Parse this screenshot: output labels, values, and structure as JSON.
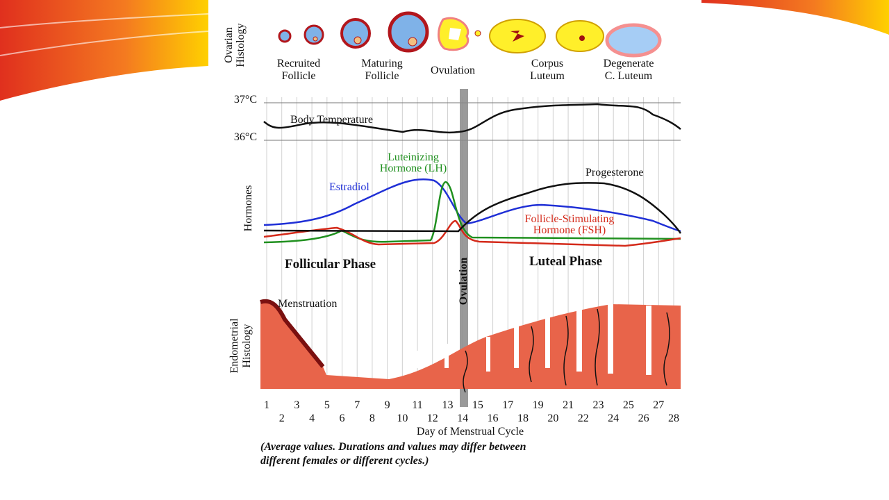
{
  "ovarian": {
    "label_lines": [
      "Ovarian",
      "Histology"
    ],
    "stages": [
      {
        "lines": [
          "Recruited",
          "Follicle"
        ]
      },
      {
        "lines": [
          "Maturing",
          "Follicle"
        ]
      },
      {
        "lines": [
          "Ovulation"
        ]
      },
      {
        "lines": [
          "Corpus",
          "Luteum"
        ]
      },
      {
        "lines": [
          "Degenerate",
          "C. Luteum"
        ]
      }
    ]
  },
  "temperature": {
    "high": "37°C",
    "low": "36°C",
    "label": "Body Temperature"
  },
  "hormones": {
    "axis_label": "Hormones",
    "lh_lines": [
      "Luteinizing",
      "Hormone (LH)"
    ],
    "estradiol": "Estradiol",
    "progesterone": "Progesterone",
    "fsh_lines": [
      "Follicle-Stimulating",
      "Hormone (FSH)"
    ]
  },
  "phases": {
    "follicular": "Follicular Phase",
    "luteal": "Luteal Phase",
    "ovulation": "Ovulation"
  },
  "endometrium": {
    "label_lines": [
      "Endometrial",
      "Histology"
    ],
    "menstruation": "Menstruation"
  },
  "days": [
    1,
    2,
    3,
    4,
    5,
    6,
    7,
    8,
    9,
    10,
    11,
    12,
    13,
    14,
    15,
    16,
    17,
    18,
    19,
    20,
    21,
    22,
    23,
    24,
    25,
    26,
    27,
    28
  ],
  "x_label": "Day of Menstrual Cycle",
  "note_lines": [
    "(Average values. Durations and values may differ between",
    "different females or different cycles.)"
  ]
}
